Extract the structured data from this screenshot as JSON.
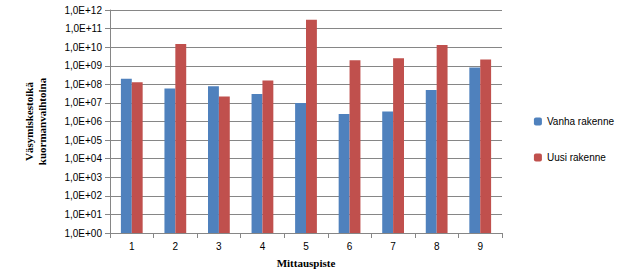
{
  "chart_data": {
    "type": "bar",
    "x_label": "Mittauspiste",
    "y_label": "Väsymiskestoikä kuormanvaihtoina",
    "categories": [
      "1",
      "2",
      "3",
      "4",
      "5",
      "6",
      "7",
      "8",
      "9"
    ],
    "series": [
      {
        "name": "Vanha rakenne",
        "color": "#4f81bd",
        "values": [
          200000000,
          60000000,
          80000000,
          30000000,
          10000000,
          2500000,
          3500000,
          50000000,
          800000000
        ]
      },
      {
        "name": "Uusi rakenne",
        "color": "#c0504d",
        "values": [
          130000000,
          15000000000,
          22000000,
          160000000,
          300000000000,
          2000000000,
          2500000000,
          13000000000,
          2200000000
        ]
      }
    ],
    "log": "y",
    "ylim": [
      1,
      1000000000000
    ],
    "yticks": [
      {
        "value": 1,
        "label": "1,0E+00"
      },
      {
        "value": 10,
        "label": "1,0E+01"
      },
      {
        "value": 100,
        "label": "1,0E+02"
      },
      {
        "value": 1000,
        "label": "1,0E+03"
      },
      {
        "value": 10000,
        "label": "1,0E+04"
      },
      {
        "value": 100000,
        "label": "1,0E+05"
      },
      {
        "value": 1000000,
        "label": "1,0E+06"
      },
      {
        "value": 10000000,
        "label": "1,0E+07"
      },
      {
        "value": 100000000,
        "label": "1,0E+08"
      },
      {
        "value": 1000000000,
        "label": "1,0E+09"
      },
      {
        "value": 10000000000,
        "label": "1,0E+10"
      },
      {
        "value": 100000000000,
        "label": "1,0E+11"
      },
      {
        "value": 1000000000000,
        "label": "1,0E+12"
      }
    ],
    "grid": true,
    "legend": "right"
  }
}
